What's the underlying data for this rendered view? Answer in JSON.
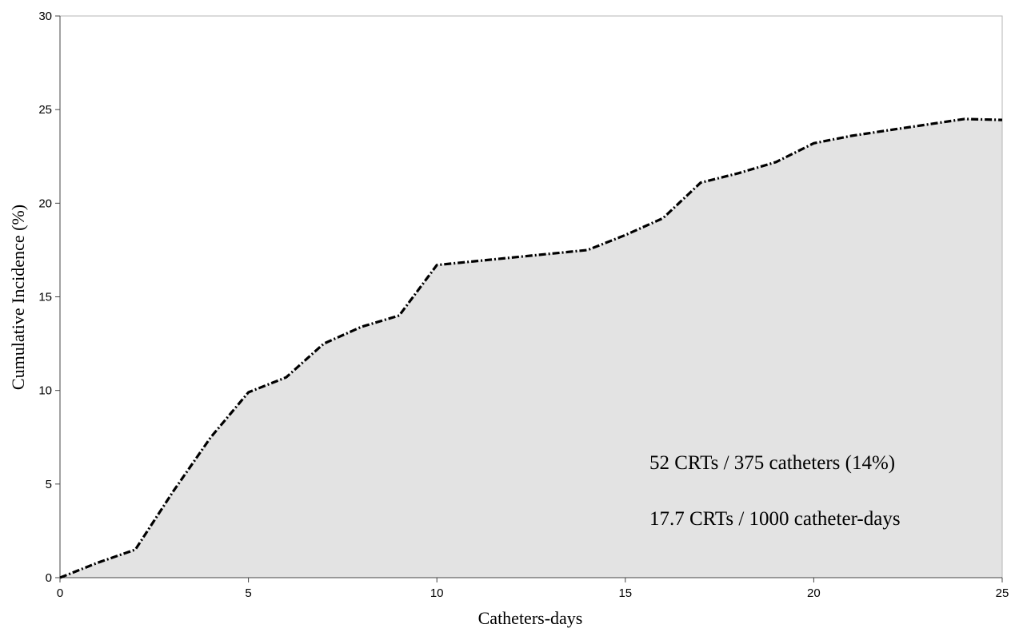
{
  "chart_data": {
    "type": "area",
    "title": "",
    "xlabel": "Catheters-days",
    "ylabel": "Cumulative Incidence (%)",
    "xlim": [
      0,
      25
    ],
    "ylim": [
      0,
      30
    ],
    "x_ticks": [
      0,
      5,
      10,
      15,
      20,
      25
    ],
    "y_ticks": [
      0,
      5,
      10,
      15,
      20,
      25,
      30
    ],
    "grid": false,
    "legend": "none",
    "series": [
      {
        "x": [
          0,
          1,
          2,
          3,
          4,
          5,
          6,
          7,
          8,
          9,
          10,
          11,
          12,
          13,
          14,
          15,
          16,
          17,
          18,
          19,
          20,
          21,
          22,
          23,
          24,
          25
        ],
        "values": [
          0,
          0.8,
          1.5,
          4.6,
          7.5,
          9.9,
          10.7,
          12.5,
          13.4,
          14.0,
          16.7,
          16.9,
          17.1,
          17.3,
          17.5,
          18.3,
          19.2,
          21.1,
          21.6,
          22.2,
          23.2,
          23.6,
          23.9,
          24.2,
          24.5,
          24.45
        ],
        "line_color": "#000000",
        "fill_color": "#e3e3e3"
      }
    ],
    "annotations": [
      "52 CRTs / 375 catheters (14%)",
      "17.7 CRTs / 1000 catheter-days"
    ]
  }
}
